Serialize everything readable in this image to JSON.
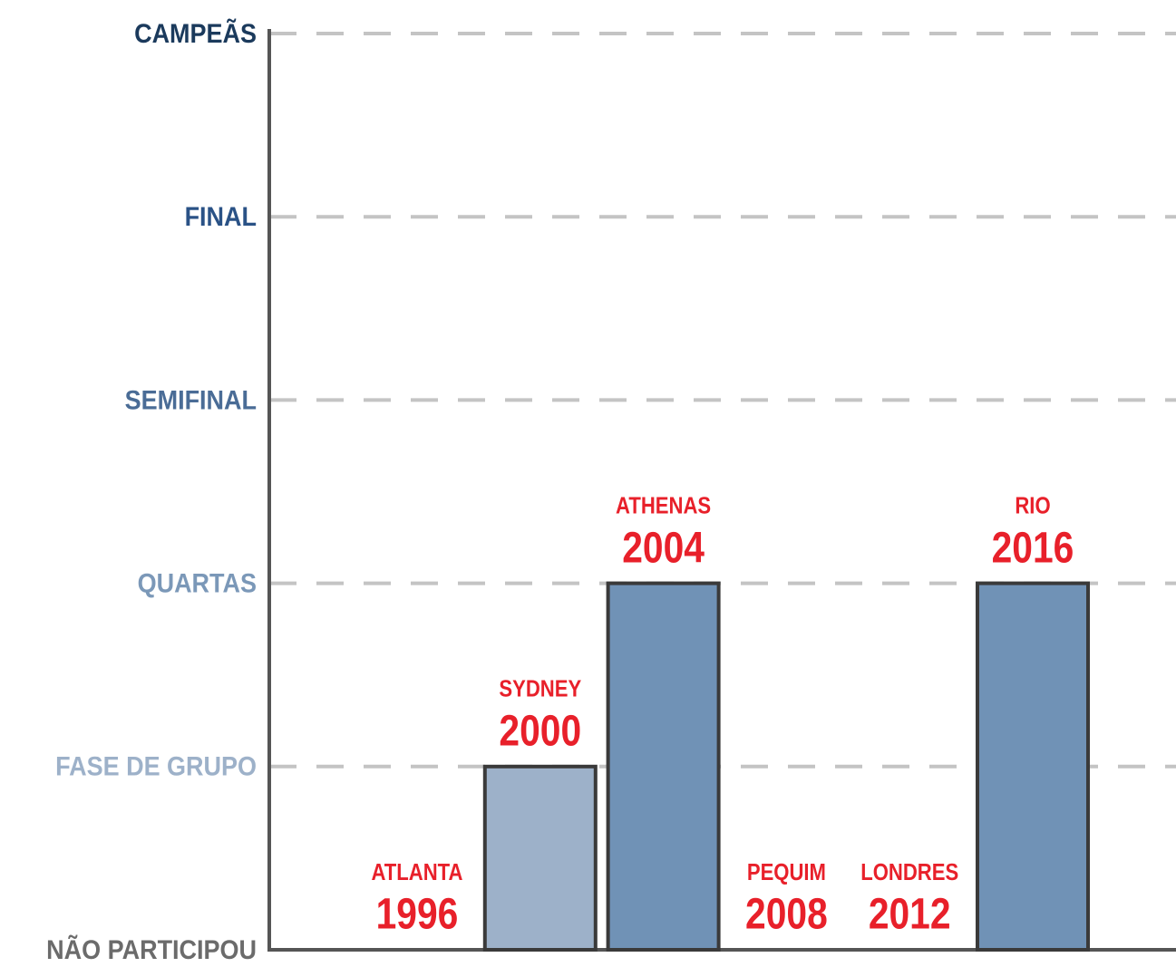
{
  "chart_data": {
    "type": "bar",
    "categories": [
      "ATLANTA",
      "SYDNEY",
      "ATHENAS",
      "PEQUIM",
      "LONDRES",
      "RIO"
    ],
    "years": [
      "1996",
      "2000",
      "2004",
      "2008",
      "2012",
      "2016"
    ],
    "values": [
      0,
      1,
      2,
      0,
      0,
      2
    ],
    "colors": [
      "#9db1c9",
      "#9db1c9",
      "#7092b6",
      "#7092b6",
      "#7092b6",
      "#7092b6"
    ],
    "label_color": "#e8202a",
    "ylim": [
      0,
      5
    ],
    "yticks": [
      {
        "value": 0,
        "label": "NÃO PARTICIPOU"
      },
      {
        "value": 1,
        "label": "FASE DE GRUPO"
      },
      {
        "value": 2,
        "label": "QUARTAS"
      },
      {
        "value": 3,
        "label": "SEMIFINAL"
      },
      {
        "value": 4,
        "label": "FINAL"
      },
      {
        "value": 5,
        "label": "CAMPEÃS"
      }
    ],
    "ytick_colors": [
      "#6b6b6b",
      "#9db1c9",
      "#7b98b8",
      "#4a6c96",
      "#2a5286",
      "#1b3a5c"
    ],
    "grid": true
  }
}
